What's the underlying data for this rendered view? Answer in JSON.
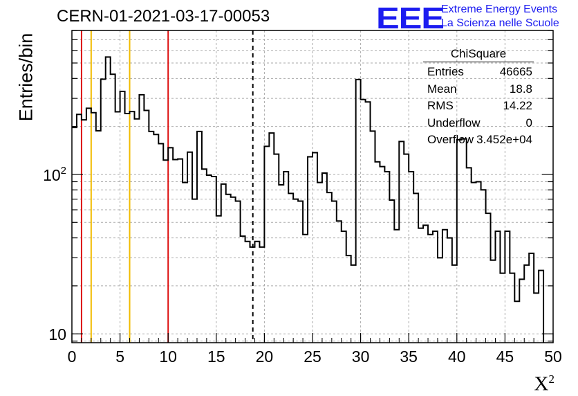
{
  "title": "CERN-01-2021-03-17-00053",
  "logo": {
    "mark": "EEE",
    "line1": "Extreme Energy Events",
    "line2": "La Scienza nelle Scuole"
  },
  "stats": {
    "name": "ChiSquare",
    "rows": [
      {
        "label": "Entries",
        "value": "46665"
      },
      {
        "label": "Mean",
        "value": "18.8"
      },
      {
        "label": "RMS",
        "value": "14.22"
      },
      {
        "label": "Underflow",
        "value": "0"
      },
      {
        "label": "Overflow",
        "value": "3.452e+04"
      }
    ]
  },
  "chart_data": {
    "type": "histogram",
    "title": "CERN-01-2021-03-17-00053",
    "xlabel": "X²",
    "ylabel": "Entries/bin",
    "xlim": [
      0,
      50
    ],
    "ylim": [
      8.8,
      800
    ],
    "yscale": "log",
    "grid": true,
    "bin_width": 0.5,
    "x_ticks": [
      "0",
      "5",
      "10",
      "15",
      "20",
      "25",
      "30",
      "35",
      "40",
      "45",
      "50"
    ],
    "y_ticks": [
      {
        "value": 10,
        "label": "10"
      },
      {
        "value": 100,
        "label": "10²"
      }
    ],
    "values": [
      197,
      238,
      220,
      260,
      244,
      188,
      396,
      545,
      425,
      247,
      332,
      241,
      248,
      223,
      316,
      252,
      186,
      178,
      156,
      123,
      147,
      124,
      125,
      89,
      138,
      70,
      186,
      108,
      99,
      97,
      55,
      87,
      75,
      72,
      68,
      41,
      38,
      35,
      38,
      35,
      150,
      182,
      134,
      86,
      104,
      76,
      70,
      68,
      42,
      129,
      137,
      89,
      102,
      77,
      68,
      51,
      44,
      31,
      27,
      394,
      295,
      285,
      187,
      120,
      112,
      104,
      69,
      45,
      161,
      134,
      104,
      76,
      46,
      48,
      42,
      44,
      30,
      45,
      40,
      27,
      165,
      167,
      110,
      89,
      90,
      80,
      57,
      29,
      44,
      24,
      44,
      24,
      16,
      22,
      27,
      32,
      18,
      25
    ],
    "vertical_lines": [
      {
        "x": 1,
        "color": "#dd1111",
        "style": "solid"
      },
      {
        "x": 2,
        "color": "#f2bb00",
        "style": "solid"
      },
      {
        "x": 6,
        "color": "#f2bb00",
        "style": "solid"
      },
      {
        "x": 10,
        "color": "#dd1111",
        "style": "solid"
      },
      {
        "x": 18.8,
        "color": "#000000",
        "style": "dashed"
      }
    ],
    "colors": {
      "line": "#000000",
      "grid": "#aaaaaa",
      "logo": "#1c1cf0"
    }
  }
}
